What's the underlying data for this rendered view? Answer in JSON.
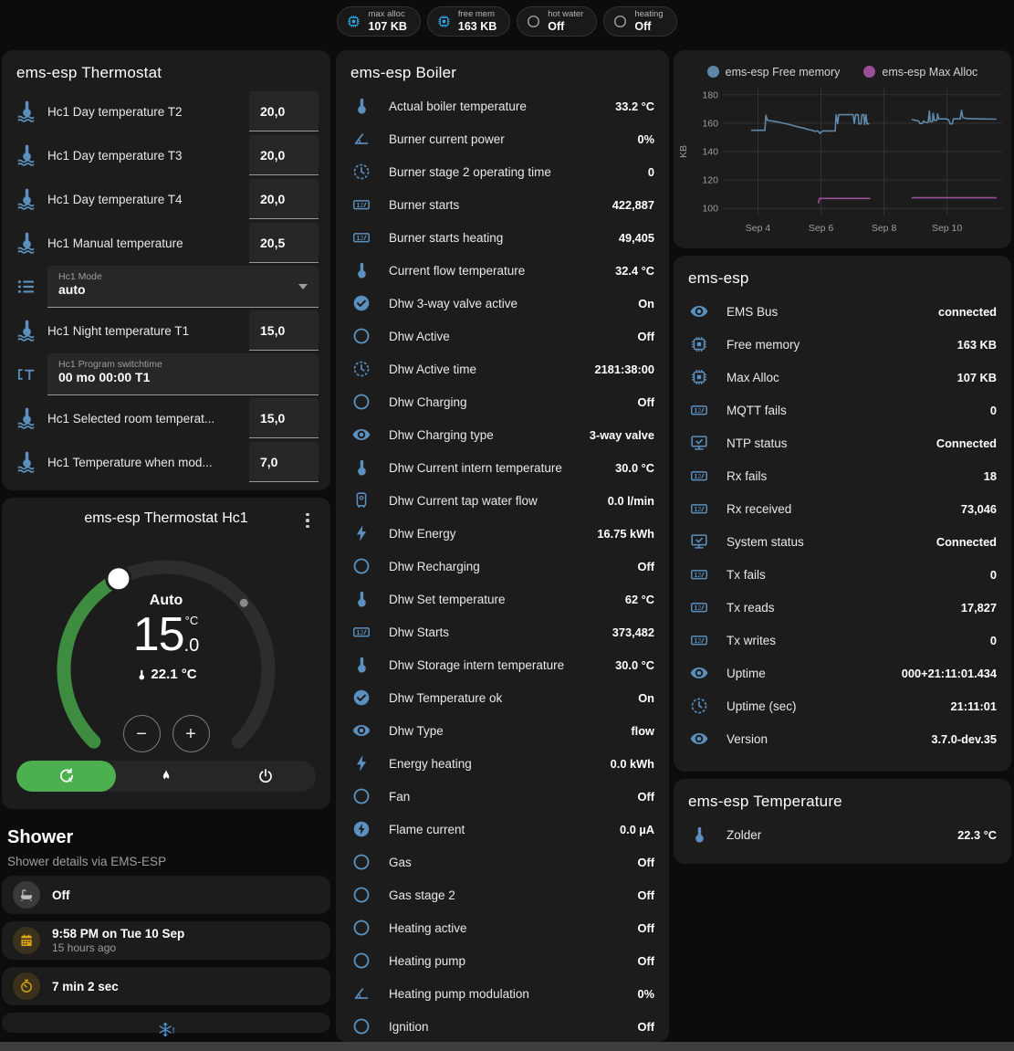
{
  "colors": {
    "icon_blue": "#5b8fbe",
    "badge_blue": "#2fa7e8",
    "badge_gray": "#9e9e9e",
    "amber": "#d9a514",
    "green": "#4caf50",
    "punch": "#1c1c1c"
  },
  "header": {
    "badges": [
      {
        "label": "max alloc",
        "value": "107 KB",
        "icon": "chip",
        "icon_color": "#2fa7e8"
      },
      {
        "label": "free mem",
        "value": "163 KB",
        "icon": "chip",
        "icon_color": "#2fa7e8"
      },
      {
        "label": "hot water",
        "value": "Off",
        "icon": "circle",
        "icon_color": "#9e9e9e"
      },
      {
        "label": "heating",
        "value": "Off",
        "icon": "circle",
        "icon_color": "#9e9e9e"
      }
    ]
  },
  "thermostat_card": {
    "title": "ems-esp Thermostat",
    "rows": [
      {
        "type": "number",
        "icon": "thermo-waves",
        "label": "Hc1 Day temperature T2",
        "value": "20,0"
      },
      {
        "type": "number",
        "icon": "thermo-waves",
        "label": "Hc1 Day temperature T3",
        "value": "20,0"
      },
      {
        "type": "number",
        "icon": "thermo-waves",
        "label": "Hc1 Day temperature T4",
        "value": "20,0"
      },
      {
        "type": "number",
        "icon": "thermo-waves",
        "label": "Hc1 Manual temperature",
        "value": "20,5"
      },
      {
        "type": "select",
        "icon": "list",
        "field_label": "Hc1 Mode",
        "value": "auto"
      },
      {
        "type": "number",
        "icon": "thermo-waves",
        "label": "Hc1 Night temperature T1",
        "value": "15,0"
      },
      {
        "type": "text",
        "icon": "textbox",
        "field_label": "Hc1 Program switchtime",
        "value": "00 mo 00:00 T1"
      },
      {
        "type": "number",
        "icon": "thermo-waves",
        "label": "Hc1 Selected room temperat...",
        "value": "15,0"
      },
      {
        "type": "number",
        "icon": "thermo-waves",
        "label": "Hc1 Temperature when mod...",
        "value": "7,0"
      }
    ]
  },
  "dial_card": {
    "title": "ems-esp Thermostat Hc1",
    "mode_label": "Auto",
    "target_int": "15",
    "target_frac": ".0",
    "target_unit": "°C",
    "current": "22.1 °C",
    "decrease": "−",
    "increase": "+",
    "modes": [
      {
        "icon": "auto",
        "active": true
      },
      {
        "icon": "flame",
        "active": false
      },
      {
        "icon": "power",
        "active": false
      }
    ]
  },
  "shower": {
    "title": "Shower",
    "subtitle": "Shower details via EMS-ESP",
    "items": [
      {
        "icon": "bathtub",
        "icon_color": "#c0c0c0",
        "bg": "#3a3a3a",
        "value": "Off"
      },
      {
        "icon": "calendar",
        "icon_color": "#d9a514",
        "bg": "rgba(217,165,20,0.16)",
        "value": "9:58 PM on Tue 10 Sep",
        "secondary": "15 hours ago"
      },
      {
        "icon": "timer",
        "icon_color": "#d9a514",
        "bg": "rgba(217,165,20,0.16)",
        "value": "7 min 2 sec"
      },
      {
        "icon": "snowflake",
        "icon_color": "#4a90c8",
        "center": true
      }
    ]
  },
  "boiler": {
    "title": "ems-esp Boiler",
    "rows": [
      {
        "icon": "thermometer",
        "label": "Actual boiler temperature",
        "value": "33.2 °C"
      },
      {
        "icon": "angle",
        "label": "Burner current power",
        "value": "0%"
      },
      {
        "icon": "clock",
        "label": "Burner stage 2 operating time",
        "value": "0"
      },
      {
        "icon": "counter",
        "label": "Burner starts",
        "value": "422,887"
      },
      {
        "icon": "counter",
        "label": "Burner starts heating",
        "value": "49,405"
      },
      {
        "icon": "thermometer",
        "label": "Current flow temperature",
        "value": "32.4 °C"
      },
      {
        "icon": "check-circle",
        "label": "Dhw 3-way valve active",
        "value": "On"
      },
      {
        "icon": "circle",
        "label": "Dhw Active",
        "value": "Off"
      },
      {
        "icon": "clock",
        "label": "Dhw Active time",
        "value": "2181:38:00"
      },
      {
        "icon": "circle",
        "label": "Dhw Charging",
        "value": "Off"
      },
      {
        "icon": "eye",
        "label": "Dhw Charging type",
        "value": "3-way valve"
      },
      {
        "icon": "thermometer",
        "label": "Dhw Current intern temperature",
        "value": "30.0 °C"
      },
      {
        "icon": "waterboiler",
        "label": "Dhw Current tap water flow",
        "value": "0.0 l/min"
      },
      {
        "icon": "flash",
        "label": "Dhw Energy",
        "value": "16.75 kWh"
      },
      {
        "icon": "circle",
        "label": "Dhw Recharging",
        "value": "Off"
      },
      {
        "icon": "thermometer",
        "label": "Dhw Set temperature",
        "value": "62 °C"
      },
      {
        "icon": "counter",
        "label": "Dhw Starts",
        "value": "373,482"
      },
      {
        "icon": "thermometer",
        "label": "Dhw Storage intern temperature",
        "value": "30.0 °C"
      },
      {
        "icon": "check-circle",
        "label": "Dhw Temperature ok",
        "value": "On"
      },
      {
        "icon": "eye",
        "label": "Dhw Type",
        "value": "flow"
      },
      {
        "icon": "flash",
        "label": "Energy heating",
        "value": "0.0 kWh"
      },
      {
        "icon": "circle",
        "label": "Fan",
        "value": "Off"
      },
      {
        "icon": "flash-circle",
        "label": "Flame current",
        "value": "0.0 µA"
      },
      {
        "icon": "circle",
        "label": "Gas",
        "value": "Off"
      },
      {
        "icon": "circle",
        "label": "Gas stage 2",
        "value": "Off"
      },
      {
        "icon": "circle",
        "label": "Heating active",
        "value": "Off"
      },
      {
        "icon": "circle",
        "label": "Heating pump",
        "value": "Off"
      },
      {
        "icon": "angle",
        "label": "Heating pump modulation",
        "value": "0%"
      },
      {
        "icon": "circle",
        "label": "Ignition",
        "value": "Off"
      }
    ]
  },
  "emsesp": {
    "title": "ems-esp",
    "rows": [
      {
        "icon": "eye",
        "label": "EMS Bus",
        "value": "connected"
      },
      {
        "icon": "chip",
        "label": "Free memory",
        "value": "163 KB"
      },
      {
        "icon": "chip",
        "label": "Max Alloc",
        "value": "107 KB"
      },
      {
        "icon": "counter",
        "label": "MQTT fails",
        "value": "0"
      },
      {
        "icon": "monitor",
        "label": "NTP status",
        "value": "Connected"
      },
      {
        "icon": "counter",
        "label": "Rx fails",
        "value": "18"
      },
      {
        "icon": "counter",
        "label": "Rx received",
        "value": "73,046"
      },
      {
        "icon": "monitor",
        "label": "System status",
        "value": "Connected"
      },
      {
        "icon": "counter",
        "label": "Tx fails",
        "value": "0"
      },
      {
        "icon": "counter",
        "label": "Tx reads",
        "value": "17,827"
      },
      {
        "icon": "counter",
        "label": "Tx writes",
        "value": "0"
      },
      {
        "icon": "eye",
        "label": "Uptime",
        "value": "000+21:11:01.434"
      },
      {
        "icon": "clock",
        "label": "Uptime (sec)",
        "value": "21:11:01"
      },
      {
        "icon": "eye",
        "label": "Version",
        "value": "3.7.0-dev.35"
      }
    ]
  },
  "temperature_card": {
    "title": "ems-esp Temperature",
    "rows": [
      {
        "icon": "thermometer",
        "label": "Zolder",
        "value": "22.3 °C"
      }
    ]
  },
  "chart_data": {
    "type": "line",
    "title": "",
    "xlabel": "",
    "ylabel": "KB",
    "legend_position": "top",
    "grid": true,
    "x_range": [
      3.0,
      11.75
    ],
    "y_range": [
      95,
      185
    ],
    "y_ticks": [
      100,
      120,
      140,
      160,
      180
    ],
    "x_ticks": [
      {
        "v": 4,
        "label": "Sep 4"
      },
      {
        "v": 6,
        "label": "Sep 6"
      },
      {
        "v": 8,
        "label": "Sep 8"
      },
      {
        "v": 10,
        "label": "Sep 10"
      }
    ],
    "series": [
      {
        "name": "ems-esp Free memory",
        "color": "#5e87a8",
        "segments": [
          [
            [
              3.8,
              155
            ],
            [
              4.22,
              155
            ],
            [
              4.25,
              165.5
            ],
            [
              4.3,
              162
            ],
            [
              4.45,
              161.5
            ],
            [
              4.7,
              160.5
            ],
            [
              5.0,
              159
            ],
            [
              5.25,
              157.5
            ],
            [
              5.45,
              156.5
            ],
            [
              5.6,
              155.5
            ],
            [
              5.72,
              155
            ],
            [
              5.8,
              154.3
            ],
            [
              5.9,
              154.6
            ],
            [
              5.97,
              152.8
            ],
            [
              6.05,
              154.5
            ],
            [
              6.45,
              154.5
            ],
            [
              6.48,
              166
            ],
            [
              6.53,
              159.8
            ],
            [
              6.56,
              166
            ],
            [
              7.02,
              166
            ],
            [
              7.06,
              159.8
            ],
            [
              7.1,
              166
            ],
            [
              7.18,
              166
            ],
            [
              7.2,
              159.5
            ],
            [
              7.27,
              159.5
            ],
            [
              7.3,
              166
            ],
            [
              7.36,
              166
            ],
            [
              7.38,
              159
            ],
            [
              7.43,
              166
            ],
            [
              7.46,
              159.5
            ],
            [
              7.52,
              159.5
            ]
          ],
          [
            [
              8.9,
              162.5
            ],
            [
              9.0,
              162
            ],
            [
              9.1,
              161.5
            ],
            [
              9.14,
              159.8
            ],
            [
              9.22,
              159.8
            ],
            [
              9.25,
              161.5
            ],
            [
              9.32,
              160.5
            ],
            [
              9.4,
              160.5
            ],
            [
              9.44,
              168.5
            ],
            [
              9.47,
              161
            ],
            [
              9.54,
              161
            ],
            [
              9.56,
              167
            ],
            [
              9.6,
              162
            ],
            [
              9.68,
              162
            ],
            [
              9.7,
              166.5
            ],
            [
              9.74,
              163
            ],
            [
              9.95,
              163
            ],
            [
              10.05,
              162.5
            ],
            [
              10.1,
              159.5
            ],
            [
              10.17,
              159.5
            ],
            [
              10.2,
              163
            ],
            [
              10.42,
              163
            ],
            [
              10.46,
              169
            ],
            [
              10.5,
              164
            ],
            [
              10.62,
              163.3
            ],
            [
              11.0,
              163
            ],
            [
              11.55,
              162.8
            ]
          ]
        ]
      },
      {
        "name": "ems-esp Max Alloc",
        "color": "#9b4f9b",
        "segments": [
          [
            [
              5.92,
              104
            ],
            [
              5.95,
              107
            ],
            [
              7.55,
              107
            ]
          ],
          [
            [
              8.9,
              107.5
            ],
            [
              11.55,
              107.5
            ]
          ]
        ]
      }
    ]
  }
}
